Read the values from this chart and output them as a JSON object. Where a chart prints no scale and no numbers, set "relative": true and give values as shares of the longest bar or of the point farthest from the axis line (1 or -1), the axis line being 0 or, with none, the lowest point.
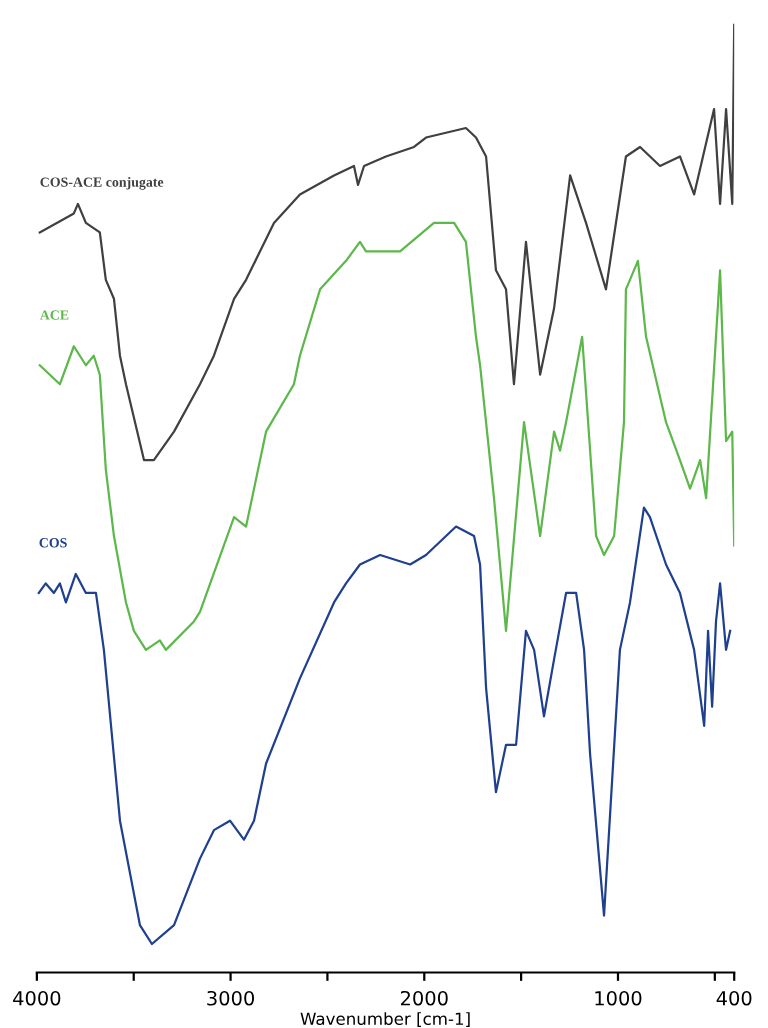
{
  "chart_data": {
    "type": "line",
    "relative": true,
    "xlabel": "Wavenumber [cm-1]",
    "xlim": [
      4000,
      400
    ],
    "xticks": [
      4000,
      {
        "value": 3500,
        "label": null
      },
      3000,
      {
        "value": 2500,
        "label": null
      },
      2000,
      {
        "value": 1500,
        "label": null
      },
      1000,
      {
        "value": 500,
        "label": null
      },
      400
    ],
    "tick_labels": "x",
    "grid": false,
    "legend": false,
    "marker": "none",
    "line_style": "solid",
    "series": [
      {
        "name": "COS-ACE conjugate",
        "color": "#404040",
        "x": [
          3985,
          3809,
          3788,
          3747,
          3675,
          3644,
          3602,
          3571,
          3540,
          3447,
          3396,
          3292,
          3158,
          3086,
          2982,
          2920,
          2776,
          2642,
          2466,
          2363,
          2342,
          2311,
          2198,
          2053,
          1991,
          1785,
          1733,
          1681,
          1630,
          1578,
          1537,
          1475,
          1402,
          1330,
          1247,
          1165,
          1062,
          959,
          886,
          783,
          680,
          607,
          504,
          473,
          442,
          410,
          400
        ],
        "values": [
          0.78,
          0.8,
          0.81,
          0.79,
          0.78,
          0.73,
          0.71,
          0.65,
          0.62,
          0.54,
          0.54,
          0.57,
          0.62,
          0.65,
          0.71,
          0.73,
          0.79,
          0.82,
          0.84,
          0.85,
          0.83,
          0.85,
          0.86,
          0.87,
          0.88,
          0.89,
          0.88,
          0.86,
          0.74,
          0.72,
          0.62,
          0.77,
          0.63,
          0.7,
          0.84,
          0.79,
          0.72,
          0.86,
          0.87,
          0.85,
          0.86,
          0.82,
          0.91,
          0.81,
          0.91,
          0.81,
          1.0
        ]
      },
      {
        "name": "ACE",
        "color": "#5cb84a",
        "x": [
          3985,
          3881,
          3809,
          3747,
          3706,
          3675,
          3644,
          3602,
          3540,
          3499,
          3437,
          3365,
          3334,
          3189,
          3158,
          2982,
          2920,
          2817,
          2673,
          2642,
          2538,
          2404,
          2332,
          2301,
          2125,
          1950,
          1846,
          1785,
          1733,
          1712,
          1640,
          1578,
          1485,
          1402,
          1330,
          1299,
          1268,
          1185,
          1113,
          1072,
          1020,
          969,
          959,
          897,
          855,
          752,
          680,
          628,
          576,
          545,
          473,
          442,
          410,
          400
        ],
        "values": [
          0.64,
          0.62,
          0.66,
          0.64,
          0.65,
          0.63,
          0.53,
          0.46,
          0.39,
          0.36,
          0.34,
          0.35,
          0.34,
          0.37,
          0.38,
          0.48,
          0.47,
          0.57,
          0.62,
          0.65,
          0.72,
          0.75,
          0.77,
          0.76,
          0.76,
          0.79,
          0.79,
          0.77,
          0.67,
          0.64,
          0.5,
          0.36,
          0.58,
          0.46,
          0.57,
          0.55,
          0.58,
          0.67,
          0.46,
          0.44,
          0.46,
          0.58,
          0.72,
          0.75,
          0.67,
          0.58,
          0.54,
          0.51,
          0.54,
          0.5,
          0.74,
          0.56,
          0.57,
          0.45
        ]
      },
      {
        "name": "COS",
        "color": "#1f3f8f",
        "x": [
          3990,
          3954,
          3912,
          3881,
          3850,
          3799,
          3747,
          3695,
          3654,
          3571,
          3468,
          3406,
          3292,
          3158,
          3086,
          3003,
          2931,
          2879,
          2817,
          2642,
          2466,
          2404,
          2332,
          2228,
          2073,
          1991,
          1836,
          1743,
          1712,
          1681,
          1630,
          1578,
          1526,
          1475,
          1433,
          1382,
          1330,
          1268,
          1216,
          1175,
          1144,
          1072,
          990,
          938,
          866,
          835,
          752,
          680,
          607,
          555,
          535,
          514,
          494,
          473,
          442,
          421
        ],
        "values": [
          0.4,
          0.41,
          0.4,
          0.41,
          0.39,
          0.42,
          0.4,
          0.4,
          0.34,
          0.16,
          0.05,
          0.03,
          0.05,
          0.12,
          0.15,
          0.16,
          0.14,
          0.16,
          0.22,
          0.31,
          0.39,
          0.41,
          0.43,
          0.44,
          0.43,
          0.44,
          0.47,
          0.46,
          0.43,
          0.3,
          0.19,
          0.24,
          0.24,
          0.36,
          0.34,
          0.27,
          0.33,
          0.4,
          0.4,
          0.34,
          0.23,
          0.06,
          0.34,
          0.39,
          0.49,
          0.48,
          0.43,
          0.4,
          0.34,
          0.26,
          0.36,
          0.28,
          0.37,
          0.41,
          0.34,
          0.36
        ]
      }
    ]
  }
}
